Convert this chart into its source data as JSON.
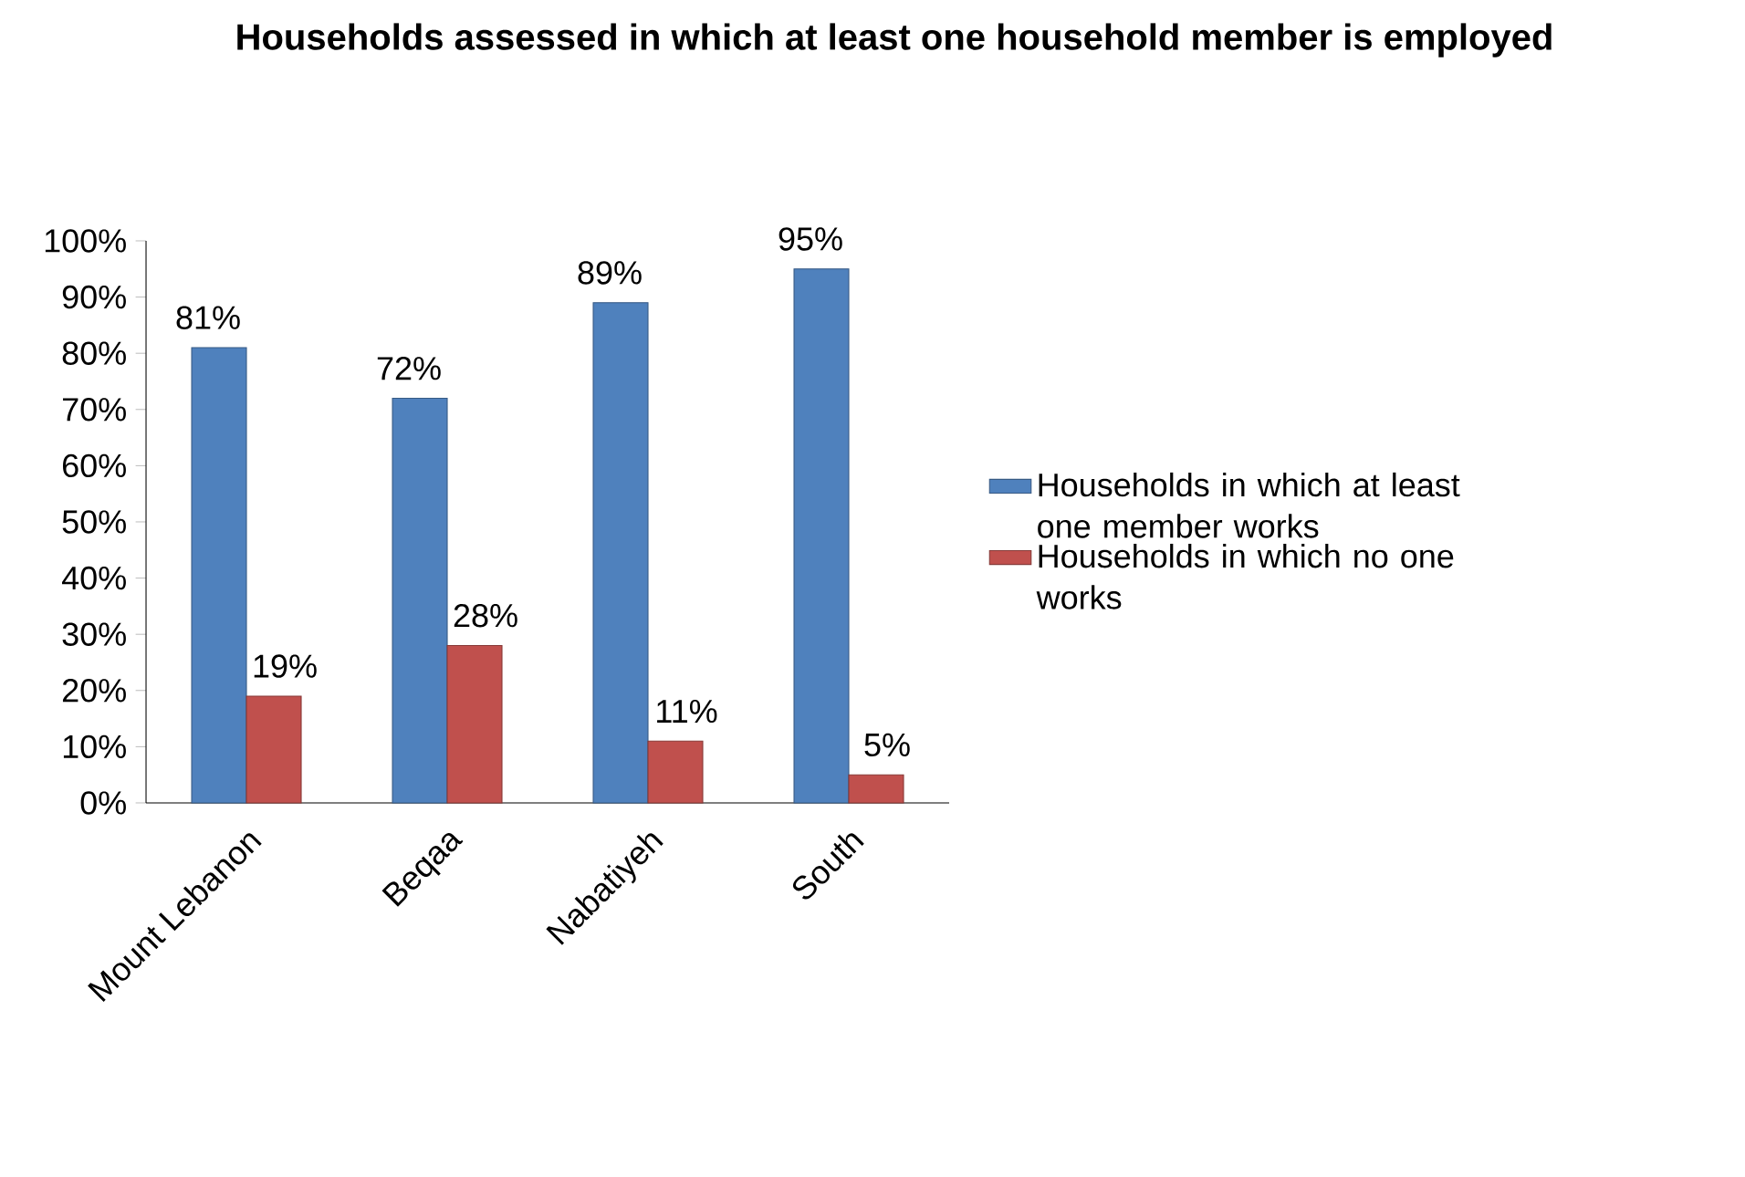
{
  "chart_data": {
    "type": "bar",
    "title": "Households assessed in which at least one household member is employed",
    "categories": [
      "Mount Lebanon",
      "Beqaa",
      "Nabatiyeh",
      "South"
    ],
    "series": [
      {
        "name": "Households in which at least one member works",
        "color": "#4f81bd",
        "values": [
          81,
          72,
          89,
          95
        ],
        "value_labels": [
          "81%",
          "72%",
          "89%",
          "95%"
        ]
      },
      {
        "name": "Households in which no one works",
        "color": "#c0504d",
        "values": [
          19,
          28,
          11,
          5
        ],
        "value_labels": [
          "19%",
          "28%",
          "11%",
          "5%"
        ]
      }
    ],
    "ylim": [
      0,
      100
    ],
    "yticks": [
      {
        "value": 0,
        "label": "0%"
      },
      {
        "value": 10,
        "label": "10%"
      },
      {
        "value": 20,
        "label": "20%"
      },
      {
        "value": 30,
        "label": "30%"
      },
      {
        "value": 40,
        "label": "40%"
      },
      {
        "value": 50,
        "label": "50%"
      },
      {
        "value": 60,
        "label": "60%"
      },
      {
        "value": 70,
        "label": "70%"
      },
      {
        "value": 80,
        "label": "80%"
      },
      {
        "value": 90,
        "label": "90%"
      },
      {
        "value": 100,
        "label": "100%"
      }
    ],
    "grid": false,
    "legend": "right"
  }
}
